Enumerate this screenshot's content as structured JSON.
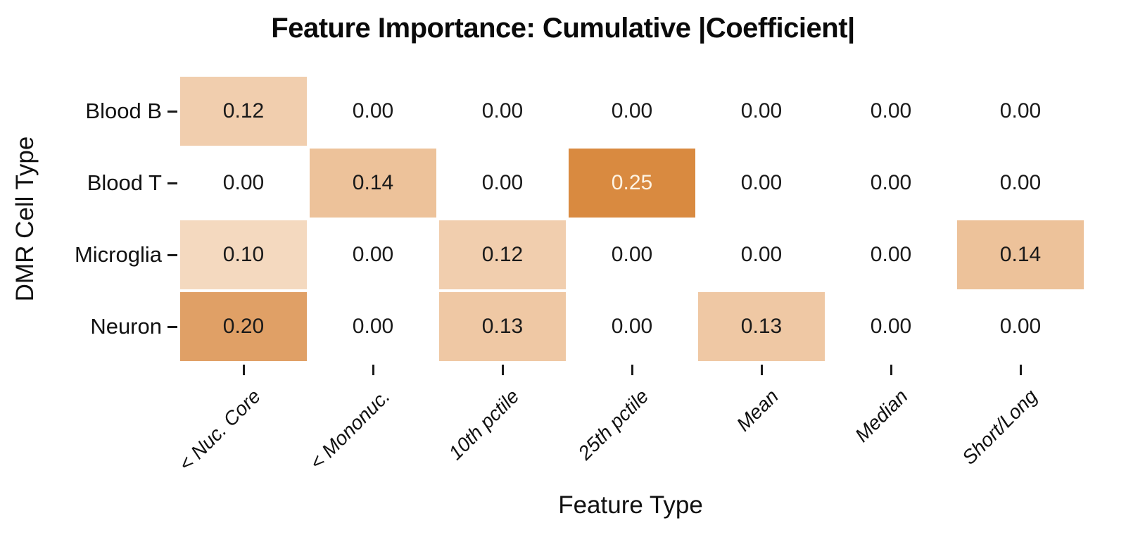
{
  "title": "Feature Importance: Cumulative |Coefficient|",
  "chart_data": {
    "type": "heatmap",
    "title": "Feature Importance: Cumulative |Coefficient|",
    "xlabel": "Feature Type",
    "ylabel": "DMR Cell Type",
    "columns": [
      "< Nuc. Core",
      "< Mononuc.",
      "10th pctile",
      "25th pctile",
      "Mean",
      "Median",
      "Short/Long"
    ],
    "rows": [
      "Blood B",
      "Blood T",
      "Microglia",
      "Neuron"
    ],
    "values": [
      [
        0.12,
        0.0,
        0.0,
        0.0,
        0.0,
        0.0,
        0.0
      ],
      [
        0.0,
        0.14,
        0.0,
        0.25,
        0.0,
        0.0,
        0.0
      ],
      [
        0.1,
        0.0,
        0.12,
        0.0,
        0.0,
        0.0,
        0.14
      ],
      [
        0.2,
        0.0,
        0.13,
        0.0,
        0.13,
        0.0,
        0.0
      ]
    ],
    "value_decimals": 2,
    "zero_cells_unfilled": true,
    "grid": false,
    "legend": "none",
    "colormap": {
      "0.10": "#f4d9bf",
      "0.12": "#f1ceae",
      "0.13": "#efc8a4",
      "0.14": "#edc29a",
      "0.20": "#e0a066",
      "0.25": "#d98a40"
    },
    "cell_text_color_default": "#1a1a1a",
    "cell_text_color_on_dark": "#fdf3e3",
    "dark_text_threshold": 0.25
  }
}
